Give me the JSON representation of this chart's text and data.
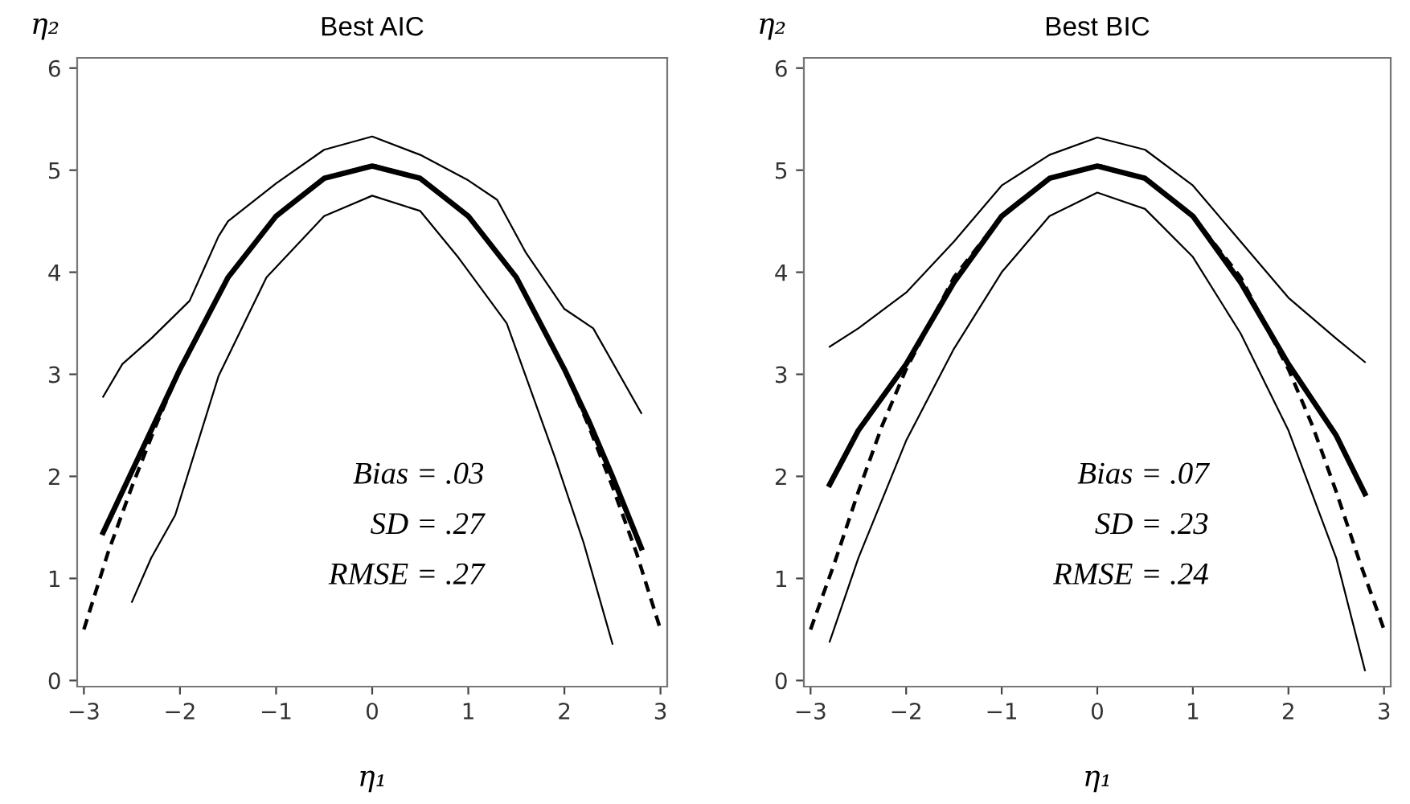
{
  "chart_data": [
    {
      "type": "line",
      "title": "Best AIC",
      "xlabel": "η₁",
      "ylabel": "η₂",
      "xlim": [
        -3.07,
        3.07
      ],
      "ylim": [
        -0.06,
        6.1
      ],
      "xticks": [
        -3,
        -2,
        -1,
        0,
        1,
        2,
        3
      ],
      "yticks": [
        0,
        1,
        2,
        3,
        4,
        5,
        6
      ],
      "grid": false,
      "legend": false,
      "annotations": [
        "Bias = .03",
        "SD = .27",
        "RMSE = .27"
      ],
      "series": [
        {
          "color": "#000000",
          "line_style": "solid",
          "x": [
            -2.8,
            -2.5,
            -2.25,
            -2,
            -1.5,
            -1,
            -0.5,
            0,
            0.5,
            1,
            1.5,
            2,
            2.25,
            2.5,
            2.8
          ],
          "values": [
            1.45,
            2.05,
            2.55,
            3.05,
            3.95,
            4.55,
            4.92,
            5.04,
            4.92,
            4.55,
            3.95,
            3.05,
            2.55,
            2.0,
            1.3
          ]
        },
        {
          "color": "#000000",
          "line_style": "dashed",
          "x": [
            -3,
            -2.75,
            -2.5,
            -2.25,
            -2,
            -1.5,
            -1,
            -0.5,
            0,
            0.5,
            1,
            1.5,
            2,
            2.25,
            2.5,
            2.75,
            3
          ],
          "values": [
            0.5,
            1.25,
            1.9,
            2.5,
            3.05,
            3.95,
            4.55,
            4.92,
            5.05,
            4.92,
            4.55,
            3.95,
            3.05,
            2.5,
            1.9,
            1.25,
            0.5
          ]
        },
        {
          "color": "#000000",
          "line_style": "solid",
          "x": [
            -2.8,
            -2.6,
            -2.3,
            -1.9,
            -1.6,
            -1.5,
            -1,
            -0.5,
            0,
            0.5,
            1,
            1.3,
            1.6,
            2,
            2.3,
            2.8
          ],
          "values": [
            2.78,
            3.1,
            3.35,
            3.72,
            4.35,
            4.5,
            4.87,
            5.2,
            5.33,
            5.15,
            4.9,
            4.71,
            4.19,
            3.64,
            3.45,
            2.62
          ]
        },
        {
          "color": "#000000",
          "line_style": "solid",
          "x": [
            -2.5,
            -2.3,
            -2.05,
            -1.6,
            -1.1,
            -0.5,
            0,
            0.5,
            0.9,
            1.4,
            1.9,
            2.2,
            2.5
          ],
          "values": [
            0.77,
            1.2,
            1.62,
            2.98,
            3.95,
            4.55,
            4.75,
            4.6,
            4.14,
            3.5,
            2.19,
            1.35,
            0.36
          ]
        }
      ]
    },
    {
      "type": "line",
      "title": "Best BIC",
      "xlabel": "η₁",
      "ylabel": "η₂",
      "xlim": [
        -3.07,
        3.07
      ],
      "ylim": [
        -0.06,
        6.1
      ],
      "xticks": [
        -3,
        -2,
        -1,
        0,
        1,
        2,
        3
      ],
      "yticks": [
        0,
        1,
        2,
        3,
        4,
        5,
        6
      ],
      "grid": false,
      "legend": false,
      "annotations": [
        "Bias = .07",
        "SD = .23",
        "RMSE = .24"
      ],
      "series": [
        {
          "color": "#000000",
          "line_style": "solid",
          "x": [
            -2.8,
            -2.5,
            -2,
            -1.5,
            -1,
            -0.5,
            0,
            0.5,
            1,
            1.5,
            2,
            2.5,
            2.8
          ],
          "values": [
            1.92,
            2.45,
            3.1,
            3.9,
            4.55,
            4.92,
            5.04,
            4.92,
            4.55,
            3.9,
            3.1,
            2.4,
            1.83
          ]
        },
        {
          "color": "#000000",
          "line_style": "dashed",
          "x": [
            -3,
            -2.75,
            -2.5,
            -2.25,
            -2,
            -1.5,
            -1,
            -0.5,
            0,
            0.5,
            1,
            1.5,
            2,
            2.25,
            2.5,
            2.75,
            3
          ],
          "values": [
            0.5,
            1.15,
            1.85,
            2.5,
            3.05,
            3.95,
            4.55,
            4.92,
            5.05,
            4.92,
            4.55,
            3.95,
            3.05,
            2.5,
            1.85,
            1.15,
            0.5
          ]
        },
        {
          "color": "#000000",
          "line_style": "solid",
          "x": [
            -2.8,
            -2.5,
            -2,
            -1.5,
            -1,
            -0.5,
            0,
            0.5,
            1,
            1.5,
            2,
            2.5,
            2.8
          ],
          "values": [
            3.27,
            3.45,
            3.8,
            4.3,
            4.85,
            5.15,
            5.32,
            5.2,
            4.85,
            4.3,
            3.75,
            3.35,
            3.12
          ]
        },
        {
          "color": "#000000",
          "line_style": "solid",
          "x": [
            -2.8,
            -2.5,
            -2,
            -1.5,
            -1,
            -0.5,
            0,
            0.5,
            1,
            1.5,
            2,
            2.5,
            2.8
          ],
          "values": [
            0.38,
            1.2,
            2.35,
            3.25,
            4.0,
            4.55,
            4.78,
            4.62,
            4.15,
            3.4,
            2.45,
            1.2,
            0.1
          ]
        }
      ]
    }
  ]
}
